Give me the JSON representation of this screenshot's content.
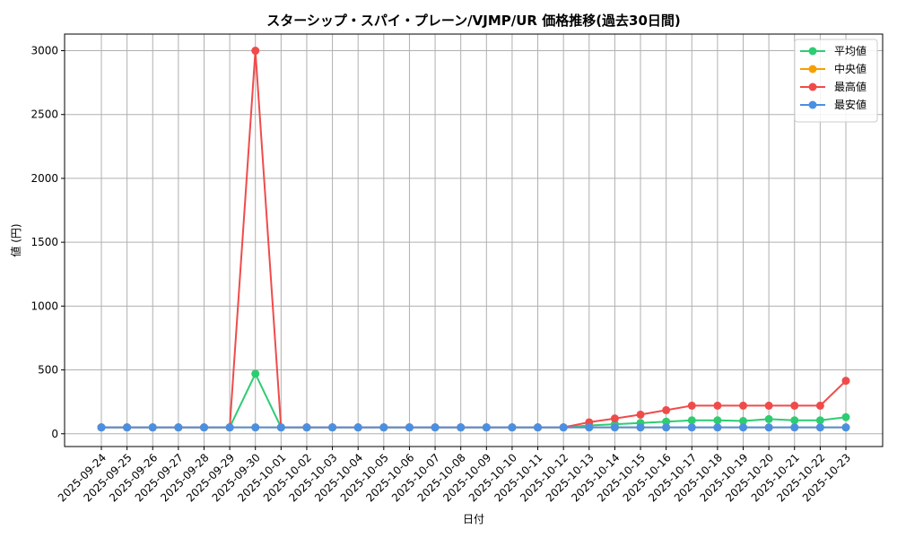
{
  "chart_data": {
    "type": "line",
    "title": "スターシップ・スパイ・プレーン/VJMP/UR 価格推移(過去30日間)",
    "xlabel": "日付",
    "ylabel": "値 (円)",
    "ylim": [
      -100,
      3130
    ],
    "yticks": [
      0,
      500,
      1000,
      1500,
      2000,
      2500,
      3000
    ],
    "grid": true,
    "legend_position": "top-right",
    "categories": [
      "2025-09-24",
      "2025-09-25",
      "2025-09-26",
      "2025-09-27",
      "2025-09-28",
      "2025-09-29",
      "2025-09-30",
      "2025-10-01",
      "2025-10-02",
      "2025-10-03",
      "2025-10-04",
      "2025-10-05",
      "2025-10-06",
      "2025-10-07",
      "2025-10-08",
      "2025-10-09",
      "2025-10-10",
      "2025-10-11",
      "2025-10-12",
      "2025-10-13",
      "2025-10-14",
      "2025-10-15",
      "2025-10-16",
      "2025-10-17",
      "2025-10-18",
      "2025-10-19",
      "2025-10-20",
      "2025-10-21",
      "2025-10-22",
      "2025-10-23"
    ],
    "series": [
      {
        "name": "平均値",
        "color": "#2ecc71",
        "values": [
          50,
          50,
          50,
          50,
          50,
          50,
          470,
          50,
          50,
          50,
          50,
          50,
          50,
          50,
          50,
          50,
          50,
          50,
          50,
          65,
          75,
          85,
          95,
          105,
          105,
          100,
          115,
          105,
          105,
          130
        ]
      },
      {
        "name": "中央値",
        "color": "#f5a000",
        "values": [
          50,
          50,
          50,
          50,
          50,
          50,
          50,
          50,
          50,
          50,
          50,
          50,
          50,
          50,
          50,
          50,
          50,
          50,
          50,
          50,
          50,
          50,
          50,
          50,
          50,
          50,
          50,
          50,
          50,
          50
        ]
      },
      {
        "name": "最高値",
        "color": "#f04b4b",
        "values": [
          50,
          50,
          50,
          50,
          50,
          50,
          3000,
          50,
          50,
          50,
          50,
          50,
          50,
          50,
          50,
          50,
          50,
          50,
          50,
          90,
          120,
          150,
          185,
          220,
          220,
          220,
          220,
          220,
          220,
          415
        ]
      },
      {
        "name": "最安値",
        "color": "#4a90e2",
        "values": [
          50,
          50,
          50,
          50,
          50,
          50,
          50,
          50,
          50,
          50,
          50,
          50,
          50,
          50,
          50,
          50,
          50,
          50,
          50,
          50,
          50,
          50,
          50,
          50,
          50,
          50,
          50,
          50,
          50,
          50
        ]
      }
    ]
  }
}
